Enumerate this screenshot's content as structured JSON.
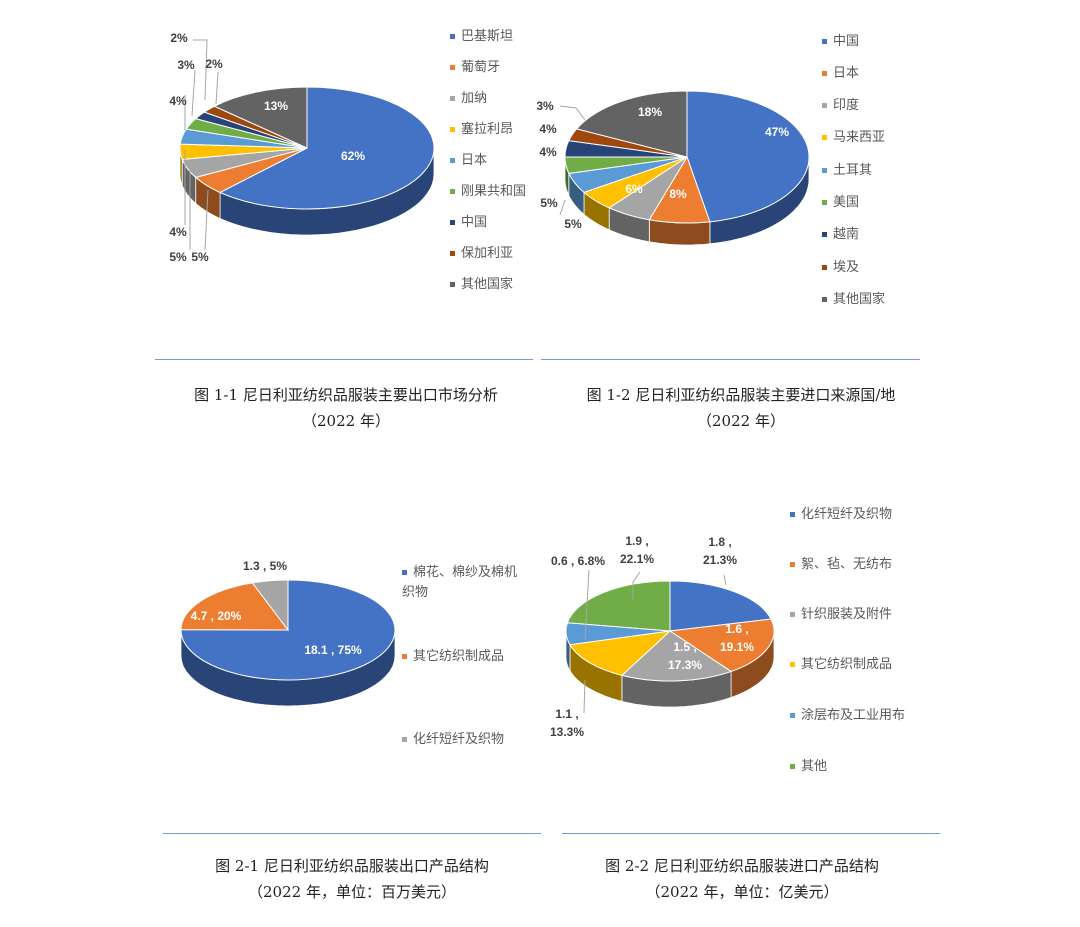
{
  "colors": {
    "blue": "#4472c4",
    "orange": "#ed7d31",
    "gray": "#a5a5a5",
    "yellow": "#ffc000",
    "lightblue": "#5b9bd5",
    "green": "#70ad47",
    "navy": "#264478",
    "brown": "#9e480e",
    "darkgray": "#636363",
    "rule": "#6f9bd8"
  },
  "chart_data": [
    {
      "type": "pie",
      "style": "3d",
      "categories": [
        "巴基斯坦",
        "葡萄牙",
        "加纳",
        "塞拉利昂",
        "日本",
        "刚果共和国",
        "中国",
        "保加利亚",
        "其他国家"
      ],
      "values": [
        62,
        5,
        5,
        4,
        4,
        3,
        2,
        2,
        13
      ],
      "data_labels": [
        "62%",
        "5%",
        "5%",
        "4%",
        "4%",
        "3%",
        "2%",
        "2%",
        "13%"
      ],
      "colors": [
        "#4472c4",
        "#ed7d31",
        "#a5a5a5",
        "#ffc000",
        "#5b9bd5",
        "#70ad47",
        "#264478",
        "#9e480e",
        "#636363"
      ],
      "legend_position": "right"
    },
    {
      "type": "pie",
      "style": "3d",
      "categories": [
        "中国",
        "日本",
        "印度",
        "马来西亚",
        "土耳其",
        "美国",
        "越南",
        "埃及",
        "其他国家"
      ],
      "values": [
        47,
        8,
        6,
        5,
        5,
        4,
        4,
        3,
        18
      ],
      "data_labels": [
        "47%",
        "8%",
        "6%",
        "5%",
        "5%",
        "4%",
        "4%",
        "3%",
        "18%"
      ],
      "colors": [
        "#4472c4",
        "#ed7d31",
        "#a5a5a5",
        "#ffc000",
        "#5b9bd5",
        "#70ad47",
        "#264478",
        "#9e480e",
        "#636363"
      ],
      "legend_position": "right"
    },
    {
      "type": "pie",
      "style": "3d",
      "categories": [
        "棉花、棉纱及棉机织物",
        "其它纺织制成品",
        "化纤短纤及织物"
      ],
      "values": [
        18.1,
        4.7,
        1.3
      ],
      "percents": [
        75,
        20,
        5
      ],
      "data_labels": [
        "18.1 , 75%",
        "4.7 , 20%",
        "1.3 , 5%"
      ],
      "colors": [
        "#4472c4",
        "#ed7d31",
        "#a5a5a5"
      ],
      "legend_position": "right"
    },
    {
      "type": "pie",
      "style": "3d",
      "categories": [
        "化纤短纤及织物",
        "絮、毡、无纺布",
        "针织服装及附件",
        "其它纺织制成品",
        "涂层布及工业用布",
        "其他"
      ],
      "values": [
        1.8,
        1.6,
        1.5,
        1.1,
        0.6,
        1.9
      ],
      "percents": [
        21.3,
        19.1,
        17.3,
        13.3,
        6.8,
        22.1
      ],
      "data_labels": [
        "1.8 , 21.3%",
        "1.6 , 19.1%",
        "1.5 , 17.3%",
        "1.1 , 13.3%",
        "0.6 , 6.8%",
        "1.9 , 22.1%"
      ],
      "colors": [
        "#4472c4",
        "#ed7d31",
        "#a5a5a5",
        "#ffc000",
        "#5b9bd5",
        "#70ad47"
      ],
      "legend_position": "right"
    }
  ],
  "captions": [
    {
      "line1": "图 1-1 尼日利亚纺织品服装主要出口市场分析",
      "line2": "（2022 年）"
    },
    {
      "line1": "图 1-2  尼日利亚纺织品服装主要进口来源国/地",
      "line2": "（2022 年）"
    },
    {
      "line1": "图 2-1  尼日利亚纺织品服装出口产品结构",
      "line2": "（2022 年，单位：百万美元）"
    },
    {
      "line1": "图 2-2  尼日利亚纺织品服装进口产品结构",
      "line2": "（2022 年，单位：亿美元）"
    }
  ]
}
